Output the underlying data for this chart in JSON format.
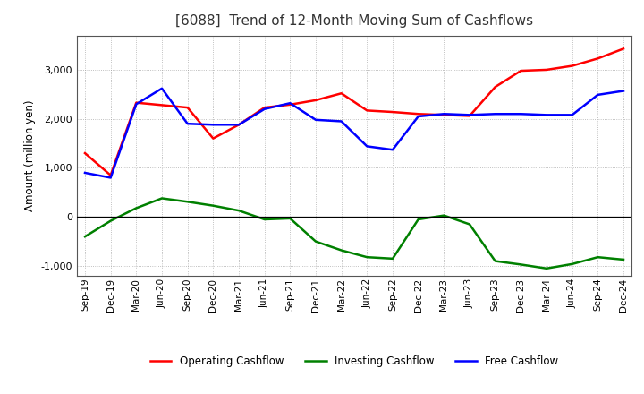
{
  "title": "[6088]  Trend of 12-Month Moving Sum of Cashflows",
  "ylabel": "Amount (million yen)",
  "x_labels": [
    "Sep-19",
    "Dec-19",
    "Mar-20",
    "Jun-20",
    "Sep-20",
    "Dec-20",
    "Mar-21",
    "Jun-21",
    "Sep-21",
    "Dec-21",
    "Mar-22",
    "Jun-22",
    "Sep-22",
    "Dec-22",
    "Mar-23",
    "Jun-23",
    "Sep-23",
    "Dec-23",
    "Mar-24",
    "Jun-24",
    "Sep-24",
    "Dec-24"
  ],
  "operating": [
    1300,
    850,
    2330,
    2280,
    2230,
    1600,
    1880,
    2230,
    2290,
    2380,
    2520,
    2170,
    2140,
    2100,
    2080,
    2060,
    2650,
    2980,
    3000,
    3080,
    3230,
    3430
  ],
  "investing": [
    -400,
    -80,
    180,
    380,
    310,
    230,
    130,
    -50,
    -30,
    -500,
    -680,
    -820,
    -850,
    -50,
    30,
    -150,
    -900,
    -970,
    -1050,
    -960,
    -820,
    -870
  ],
  "free": [
    900,
    800,
    2300,
    2620,
    1900,
    1880,
    1880,
    2200,
    2320,
    1980,
    1950,
    1440,
    1370,
    2050,
    2100,
    2080,
    2100,
    2100,
    2080,
    2080,
    2490,
    2570
  ],
  "op_color": "#FF0000",
  "inv_color": "#008000",
  "free_color": "#0000FF",
  "ylim": [
    -1200,
    3700
  ],
  "yticks": [
    -1000,
    0,
    1000,
    2000,
    3000
  ],
  "grid_color": "#999999",
  "bg_color": "#ffffff",
  "plot_bg": "#ffffff"
}
